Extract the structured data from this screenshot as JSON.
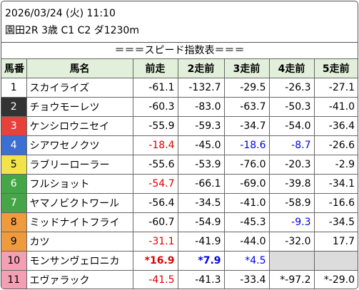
{
  "header": {
    "datetime": "2026/03/24 (火) 11:10",
    "race": "園田2R 3歳 C1 C2 ダ1230m"
  },
  "table": {
    "title": "＝＝＝スピード指数表＝＝＝",
    "columns": [
      "馬番",
      "馬名",
      "前走",
      "2走前",
      "3走前",
      "4走前",
      "5走前"
    ],
    "rows": [
      {
        "no": "1",
        "name": "スカイライズ",
        "gate_color": "#ffffff",
        "values": [
          "-61.1",
          "-132.7",
          "-29.5",
          "-26.3",
          "-27.1"
        ]
      },
      {
        "no": "2",
        "name": "チョウモーレツ",
        "gate_color": "#333333",
        "values": [
          "-60.3",
          "-83.0",
          "-63.7",
          "-50.3",
          "-41.0"
        ]
      },
      {
        "no": "3",
        "name": "ケンシロウニセイ",
        "gate_color": "#e8413c",
        "values": [
          "-55.9",
          "-59.3",
          "-34.7",
          "-54.0",
          "-36.4"
        ]
      },
      {
        "no": "4",
        "name": "シアワセノクツ",
        "gate_color": "#3d6fd1",
        "values": [
          "-18.4",
          "-45.0",
          "-18.6",
          "-8.7",
          "-26.6"
        ],
        "value_colors": [
          "#e00000",
          "#000000",
          "#0000ee",
          "#0000ee",
          "#000000"
        ]
      },
      {
        "no": "5",
        "name": "ラブリーローラー",
        "gate_color": "#f2e34a",
        "values": [
          "-55.6",
          "-53.9",
          "-76.0",
          "-20.3",
          "-2.9"
        ]
      },
      {
        "no": "6",
        "name": "フルショット",
        "gate_color": "#44a646",
        "values": [
          "-54.7",
          "-66.1",
          "-69.0",
          "-39.8",
          "-34.1"
        ],
        "value_colors": [
          "#e00000",
          "#000000",
          "#000000",
          "#000000",
          "#000000"
        ]
      },
      {
        "no": "7",
        "name": "ヤマノビクトワール",
        "gate_color": "#44a646",
        "values": [
          "-56.4",
          "-34.5",
          "-41.0",
          "-58.9",
          "-16.6"
        ]
      },
      {
        "no": "8",
        "name": "ミッドナイトフライ",
        "gate_color": "#f09a3e",
        "values": [
          "-60.7",
          "-54.9",
          "-45.3",
          "-9.3",
          "-34.5"
        ],
        "value_colors": [
          "#000000",
          "#000000",
          "#000000",
          "#0000ee",
          "#000000"
        ]
      },
      {
        "no": "9",
        "name": "カツ",
        "gate_color": "#f09a3e",
        "values": [
          "-31.1",
          "-41.9",
          "-44.0",
          "-32.0",
          "17.7"
        ],
        "value_colors": [
          "#e00000",
          "#000000",
          "#000000",
          "#000000",
          "#000000"
        ]
      },
      {
        "no": "10",
        "name": "モンサンヴェロニカ",
        "gate_color": "#f4a0b4",
        "values": [
          "*16.9",
          "*7.9",
          "*4.5"
        ],
        "value_colors": [
          "#e00000",
          "#0000ee",
          "#0000ee"
        ]
      },
      {
        "no": "11",
        "name": "エヴァラック",
        "gate_color": "#f4a0b4",
        "values": [
          "-41.5",
          "-41.3",
          "-33.4",
          "*-97.2",
          "*-29.0"
        ],
        "value_colors": [
          "#e00000",
          "#000000",
          "#000000",
          "#000000",
          "#000000"
        ]
      }
    ]
  }
}
